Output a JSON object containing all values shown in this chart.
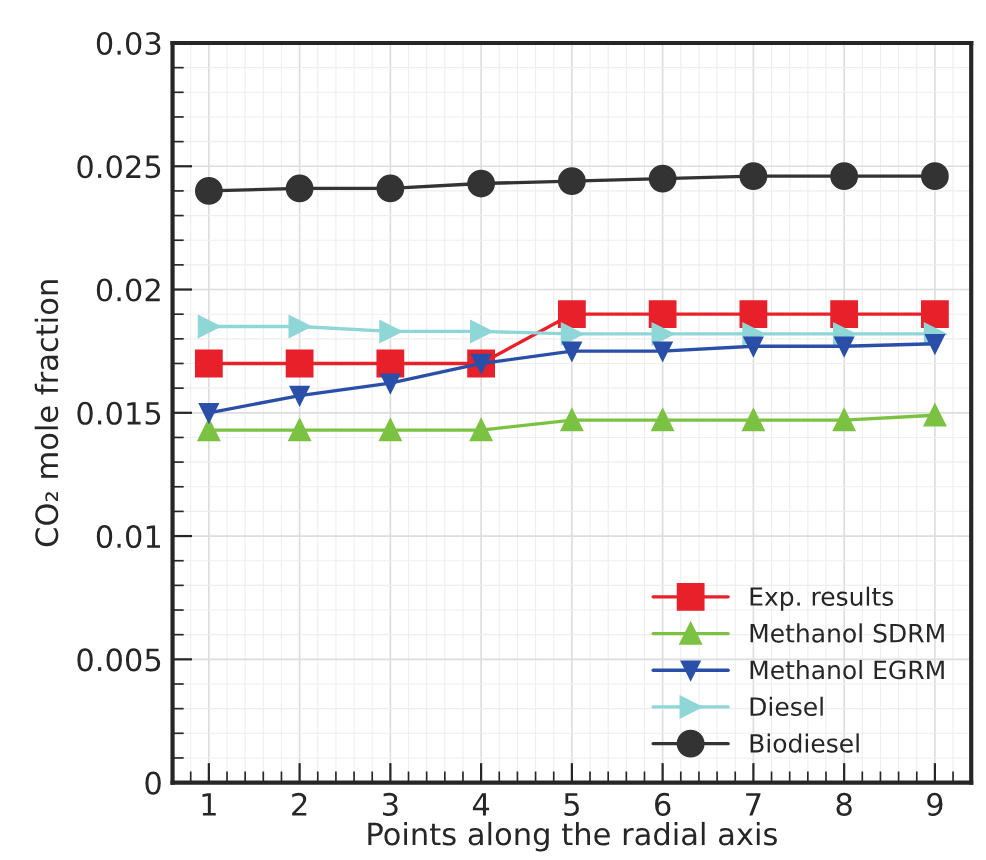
{
  "chart_data": {
    "type": "line",
    "xlabel": "Points along the radial axis",
    "ylabel": "CO₂ mole fraction",
    "x": [
      1,
      2,
      3,
      4,
      5,
      6,
      7,
      8,
      9
    ],
    "xlim": [
      0.6,
      9.4
    ],
    "xticks": [
      1,
      2,
      3,
      4,
      5,
      6,
      7,
      8,
      9
    ],
    "ylim": [
      0,
      0.03
    ],
    "yticks": [
      0,
      0.005,
      0.01,
      0.015,
      0.02,
      0.025,
      0.03
    ],
    "grid": true,
    "legend": "bottom right",
    "series": [
      {
        "name": "Exp. results",
        "color": "#e8202a",
        "marker": "square",
        "values": [
          0.017,
          0.017,
          0.017,
          0.017,
          0.019,
          0.019,
          0.019,
          0.019,
          0.019
        ]
      },
      {
        "name": "Methanol SDRM",
        "color": "#7cc242",
        "marker": "triangle",
        "values": [
          0.0143,
          0.0143,
          0.0143,
          0.0143,
          0.0147,
          0.0147,
          0.0147,
          0.0147,
          0.0149
        ]
      },
      {
        "name": "Methanol EGRM",
        "color": "#2a4fa8",
        "marker": "triangle_down",
        "values": [
          0.015,
          0.0157,
          0.0162,
          0.017,
          0.0175,
          0.0175,
          0.0177,
          0.0177,
          0.0178
        ]
      },
      {
        "name": "Diesel",
        "color": "#8fd6d6",
        "marker": "triangle_right",
        "values": [
          0.0185,
          0.0185,
          0.0183,
          0.0183,
          0.0182,
          0.0182,
          0.0182,
          0.0182,
          0.0182
        ]
      },
      {
        "name": "Biodiesel",
        "color": "#333333",
        "marker": "circle",
        "values": [
          0.024,
          0.0241,
          0.0241,
          0.0243,
          0.0244,
          0.0245,
          0.0246,
          0.0246,
          0.0246
        ]
      }
    ]
  }
}
